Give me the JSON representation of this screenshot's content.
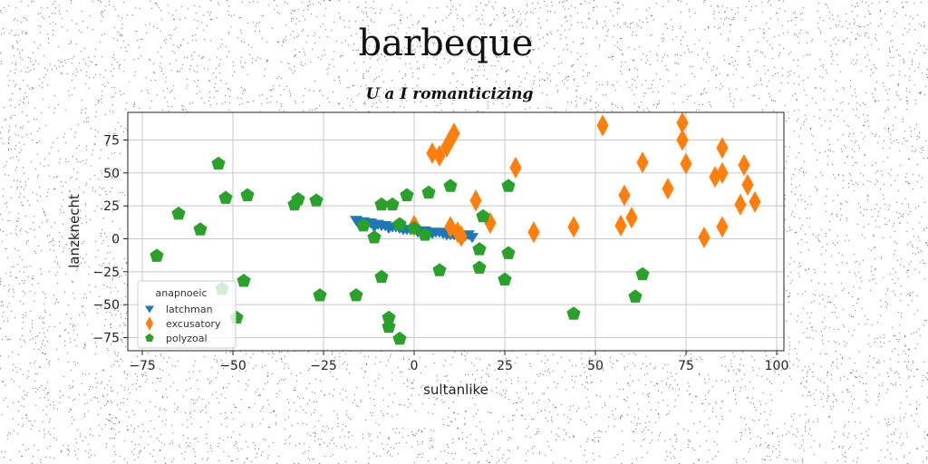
{
  "chart_data": {
    "type": "scatter",
    "suptitle": "barbeque",
    "title": "U a I romanticizing",
    "xlabel": "sultanlike",
    "ylabel": "lanzknecht",
    "xlim": [
      -79,
      102
    ],
    "ylim": [
      -85,
      96
    ],
    "xticks": [
      -75,
      -50,
      -25,
      0,
      25,
      50,
      75,
      100
    ],
    "yticks": [
      -75,
      -50,
      -25,
      0,
      25,
      50,
      75
    ],
    "xtick_labels": [
      "−75",
      "−50",
      "−25",
      "0",
      "25",
      "50",
      "75",
      "100"
    ],
    "ytick_labels": [
      "−75",
      "−50",
      "−25",
      "0",
      "25",
      "50",
      "75"
    ],
    "grid": true,
    "legend": {
      "title": "anapnoeic",
      "placement": "lower-left"
    },
    "series": [
      {
        "name": "latchman",
        "color": "#1f77b4",
        "marker": "triangle-down",
        "points": [
          [
            -16,
            14
          ],
          [
            -14,
            13
          ],
          [
            -12,
            12
          ],
          [
            -10,
            11
          ],
          [
            -8,
            10
          ],
          [
            -6,
            9
          ],
          [
            -4,
            8
          ],
          [
            -2,
            7
          ],
          [
            0,
            7
          ],
          [
            2,
            6
          ],
          [
            4,
            5
          ],
          [
            6,
            5
          ],
          [
            8,
            4
          ],
          [
            10,
            3
          ],
          [
            12,
            2
          ],
          [
            14,
            2
          ],
          [
            16,
            1
          ],
          [
            -15,
            10
          ],
          [
            -11,
            9
          ],
          [
            -7,
            8
          ],
          [
            -3,
            7
          ],
          [
            1,
            5
          ],
          [
            5,
            4
          ],
          [
            9,
            3
          ],
          [
            13,
            2
          ],
          [
            -13,
            12
          ],
          [
            -9,
            10
          ],
          [
            -5,
            9
          ],
          [
            -1,
            7
          ],
          [
            3,
            6
          ],
          [
            7,
            5
          ],
          [
            11,
            3
          ],
          [
            15,
            3
          ]
        ]
      },
      {
        "name": "excusatory",
        "color": "#ff7f0e",
        "marker": "thin-diamond",
        "points": [
          [
            5,
            65
          ],
          [
            7,
            63
          ],
          [
            9,
            70
          ],
          [
            10,
            75
          ],
          [
            11,
            80
          ],
          [
            0,
            10
          ],
          [
            10,
            9
          ],
          [
            12,
            5
          ],
          [
            13,
            2
          ],
          [
            17,
            29
          ],
          [
            21,
            12
          ],
          [
            28,
            54
          ],
          [
            33,
            5
          ],
          [
            44,
            9
          ],
          [
            52,
            86
          ],
          [
            57,
            10
          ],
          [
            58,
            33
          ],
          [
            60,
            16
          ],
          [
            63,
            58
          ],
          [
            70,
            38
          ],
          [
            74,
            88
          ],
          [
            74,
            75
          ],
          [
            75,
            57
          ],
          [
            80,
            1
          ],
          [
            83,
            47
          ],
          [
            85,
            50
          ],
          [
            85,
            69
          ],
          [
            85,
            9
          ],
          [
            90,
            26
          ],
          [
            91,
            56
          ],
          [
            92,
            41
          ],
          [
            94,
            28
          ]
        ]
      },
      {
        "name": "polyzoal",
        "color": "#2ca02c",
        "marker": "pentagon",
        "points": [
          [
            -71,
            -13
          ],
          [
            -65,
            19
          ],
          [
            -59,
            7
          ],
          [
            -54,
            57
          ],
          [
            -52,
            31
          ],
          [
            -46,
            33
          ],
          [
            -53,
            -38
          ],
          [
            -49,
            -60
          ],
          [
            -47,
            -32
          ],
          [
            -33,
            26
          ],
          [
            -32,
            30
          ],
          [
            -27,
            29
          ],
          [
            -26,
            -43
          ],
          [
            -16,
            -43
          ],
          [
            -14,
            10
          ],
          [
            -11,
            1
          ],
          [
            -9,
            26
          ],
          [
            -9,
            -29
          ],
          [
            -7,
            -67
          ],
          [
            -7,
            -60
          ],
          [
            -6,
            26
          ],
          [
            -4,
            11
          ],
          [
            -4,
            -76
          ],
          [
            -2,
            33
          ],
          [
            0,
            8
          ],
          [
            3,
            3
          ],
          [
            4,
            35
          ],
          [
            7,
            -24
          ],
          [
            10,
            40
          ],
          [
            18,
            -8
          ],
          [
            18,
            -22
          ],
          [
            19,
            17
          ],
          [
            25,
            -31
          ],
          [
            26,
            -11
          ],
          [
            26,
            40
          ],
          [
            44,
            -57
          ],
          [
            61,
            -44
          ],
          [
            63,
            -27
          ]
        ]
      }
    ]
  }
}
